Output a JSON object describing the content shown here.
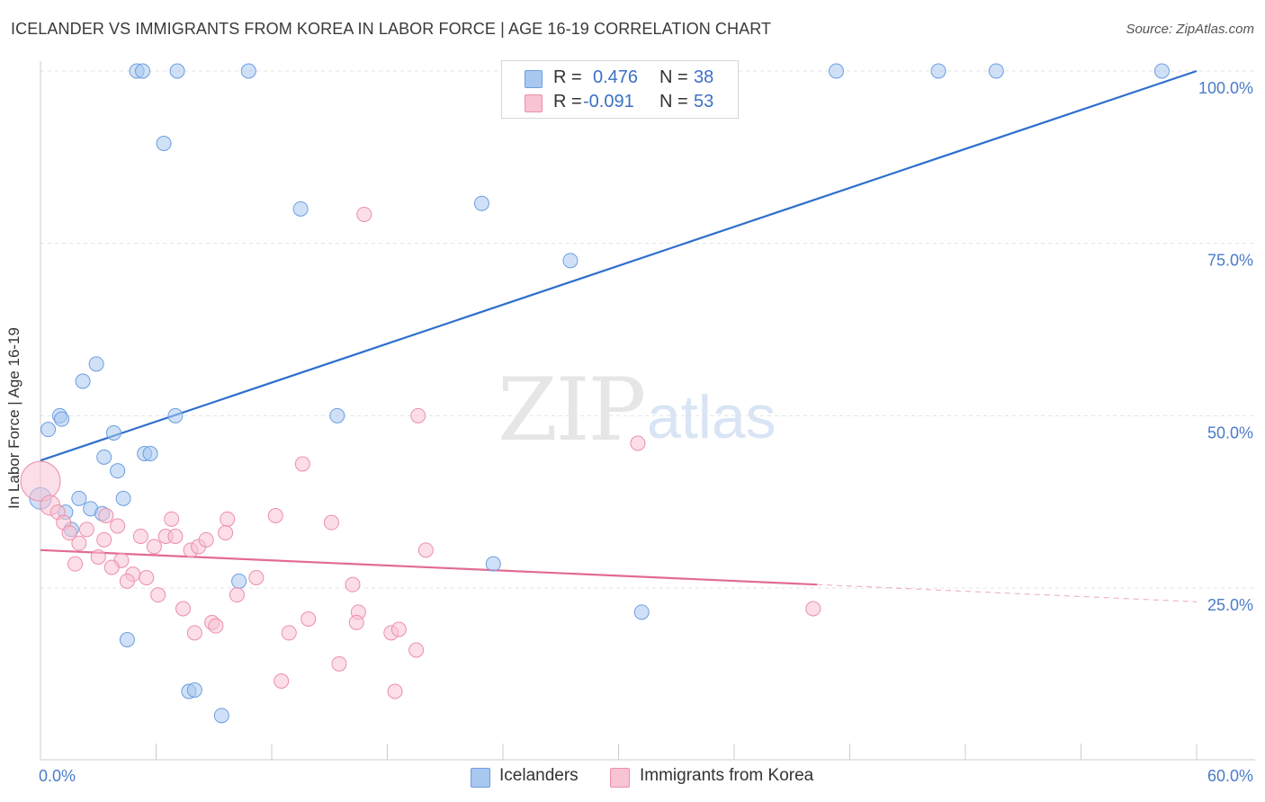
{
  "title": "ICELANDER VS IMMIGRANTS FROM KOREA IN LABOR FORCE | AGE 16-19 CORRELATION CHART",
  "source": "Source: ZipAtlas.com",
  "watermark": {
    "zip": "ZIP",
    "atlas": "atlas"
  },
  "legend_stats": [
    {
      "r_label": "R =",
      "r_value": "0.476",
      "n_label": "N =",
      "n_value": "38",
      "color": "#a9c8f0",
      "border": "#6b9ee0"
    },
    {
      "r_label": "R =",
      "r_value": "-0.091",
      "n_label": "N =",
      "n_value": "53",
      "color": "#f8c3d3",
      "border": "#ec8fab"
    }
  ],
  "chart_data": {
    "type": "scatter",
    "title": "ICELANDER VS IMMIGRANTS FROM KOREA IN LABOR FORCE | AGE 16-19 CORRELATION CHART",
    "xlabel": "",
    "ylabel": "In Labor Force | Age 16-19",
    "xlim": [
      0,
      60
    ],
    "ylim": [
      0,
      100
    ],
    "x_tick_labels": [
      "0.0%",
      "60.0%"
    ],
    "y_tick_labels": [
      "25.0%",
      "50.0%",
      "75.0%",
      "100.0%"
    ],
    "y_ticks": [
      25,
      50,
      75,
      100
    ],
    "grid": true,
    "legend_placement": "bottom",
    "series": [
      {
        "name": "Icelanders",
        "color": "#6b9ee0",
        "fill": "#a9c8f0",
        "trend": {
          "x": [
            0,
            60
          ],
          "y": [
            43.5,
            100
          ]
        },
        "trend_color": "#2e6fcd",
        "points": [
          [
            5.0,
            100
          ],
          [
            5.3,
            100
          ],
          [
            7.1,
            100
          ],
          [
            10.8,
            100
          ],
          [
            41.3,
            100
          ],
          [
            46.6,
            100
          ],
          [
            49.6,
            100
          ],
          [
            58.2,
            100
          ],
          [
            6.4,
            89.5
          ],
          [
            13.5,
            80.0
          ],
          [
            22.9,
            80.8
          ],
          [
            27.5,
            72.5
          ],
          [
            2.9,
            57.5
          ],
          [
            2.2,
            55.0
          ],
          [
            1.0,
            50.0
          ],
          [
            1.1,
            49.5
          ],
          [
            7.0,
            50.0
          ],
          [
            15.4,
            50.0
          ],
          [
            0.4,
            48.0
          ],
          [
            3.8,
            47.5
          ],
          [
            3.3,
            44.0
          ],
          [
            5.4,
            44.5
          ],
          [
            5.7,
            44.5
          ],
          [
            4.0,
            42.0
          ],
          [
            0.0,
            38.0
          ],
          [
            4.3,
            38.0
          ],
          [
            2.0,
            38.0
          ],
          [
            1.3,
            36.0
          ],
          [
            2.6,
            36.5
          ],
          [
            3.2,
            35.8
          ],
          [
            1.6,
            33.5
          ],
          [
            23.5,
            28.5
          ],
          [
            10.3,
            26.0
          ],
          [
            31.2,
            21.5
          ],
          [
            4.5,
            17.5
          ],
          [
            7.7,
            10.0
          ],
          [
            8.0,
            10.2
          ],
          [
            9.4,
            6.5
          ]
        ]
      },
      {
        "name": "Immigrants from Korea",
        "color": "#ec8fab",
        "fill": "#f8c3d3",
        "trend": {
          "x": [
            0,
            40.3
          ],
          "y": [
            30.5,
            25.5
          ]
        },
        "trend_dash": {
          "x": [
            40.3,
            60
          ],
          "y": [
            25.5,
            23.0
          ]
        },
        "trend_color": "#e26b93",
        "points": [
          [
            0.0,
            40.5
          ],
          [
            0.5,
            37.0
          ],
          [
            0.9,
            36.0
          ],
          [
            1.2,
            34.5
          ],
          [
            1.5,
            33.0
          ],
          [
            2.4,
            33.5
          ],
          [
            2.0,
            31.5
          ],
          [
            3.4,
            35.5
          ],
          [
            4.0,
            34.0
          ],
          [
            3.3,
            32.0
          ],
          [
            5.2,
            32.5
          ],
          [
            5.9,
            31.0
          ],
          [
            6.5,
            32.5
          ],
          [
            6.8,
            35.0
          ],
          [
            7.0,
            32.5
          ],
          [
            7.8,
            30.5
          ],
          [
            8.2,
            31.0
          ],
          [
            8.6,
            32.0
          ],
          [
            9.7,
            35.0
          ],
          [
            9.6,
            33.0
          ],
          [
            3.0,
            29.5
          ],
          [
            1.8,
            28.5
          ],
          [
            4.2,
            29.0
          ],
          [
            3.7,
            28.0
          ],
          [
            4.8,
            27.0
          ],
          [
            4.5,
            26.0
          ],
          [
            5.5,
            26.5
          ],
          [
            6.1,
            24.0
          ],
          [
            10.2,
            24.0
          ],
          [
            11.2,
            26.5
          ],
          [
            12.2,
            35.5
          ],
          [
            13.6,
            43.0
          ],
          [
            15.1,
            34.5
          ],
          [
            16.2,
            25.5
          ],
          [
            7.4,
            22.0
          ],
          [
            8.0,
            18.5
          ],
          [
            8.9,
            20.0
          ],
          [
            9.1,
            19.5
          ],
          [
            13.9,
            20.5
          ],
          [
            12.9,
            18.5
          ],
          [
            16.5,
            21.5
          ],
          [
            16.4,
            20.0
          ],
          [
            18.2,
            18.5
          ],
          [
            18.6,
            19.0
          ],
          [
            19.5,
            16.0
          ],
          [
            15.5,
            14.0
          ],
          [
            12.5,
            11.5
          ],
          [
            18.4,
            10.0
          ],
          [
            16.8,
            79.2
          ],
          [
            19.6,
            50.0
          ],
          [
            20.0,
            30.5
          ],
          [
            31.0,
            46.0
          ],
          [
            40.1,
            22.0
          ]
        ]
      }
    ]
  }
}
